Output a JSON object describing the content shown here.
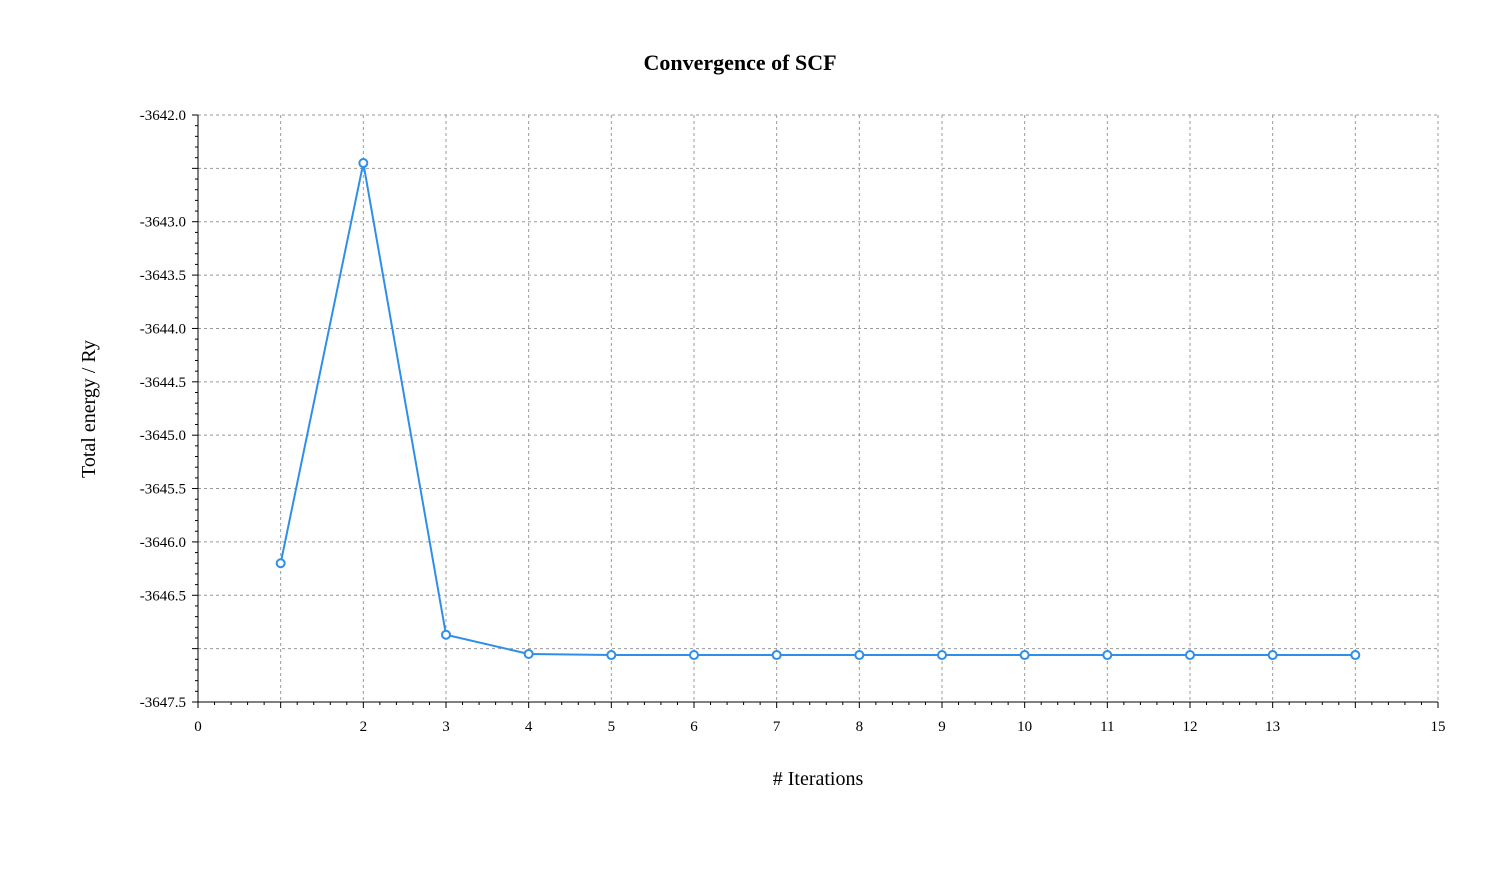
{
  "chart_data": {
    "type": "line",
    "title": "Convergence of SCF",
    "xlabel": "# Iterations",
    "ylabel": "Total energy / Ry",
    "xlim": [
      0,
      15
    ],
    "ylim": [
      -3647.5,
      -3642.0
    ],
    "xticks": [
      "0",
      "2",
      "3",
      "4",
      "5",
      "6",
      "7",
      "8",
      "9",
      "10",
      "11",
      "12",
      "13",
      "15"
    ],
    "xtick_values": [
      0,
      2,
      3,
      4,
      5,
      6,
      7,
      8,
      9,
      10,
      11,
      12,
      13,
      15
    ],
    "xgrid_values": [
      1,
      2,
      3,
      4,
      5,
      6,
      7,
      8,
      9,
      10,
      11,
      12,
      13,
      14,
      15
    ],
    "yticks": [
      "-3642.0",
      "-3643.0",
      "-3643.5",
      "-3644.0",
      "-3644.5",
      "-3645.0",
      "-3645.5",
      "-3646.0",
      "-3646.5",
      "-3647.5"
    ],
    "ytick_values": [
      -3642.0,
      -3643.0,
      -3643.5,
      -3644.0,
      -3644.5,
      -3645.0,
      -3645.5,
      -3646.0,
      -3646.5,
      -3647.5
    ],
    "ygrid_values": [
      -3642.0,
      -3642.5,
      -3643.0,
      -3643.5,
      -3644.0,
      -3644.5,
      -3645.0,
      -3645.5,
      -3646.0,
      -3646.5,
      -3647.0,
      -3647.5
    ],
    "grid": true,
    "series": [
      {
        "color": "#2e8fea",
        "x": [
          1,
          2,
          3,
          4,
          5,
          6,
          7,
          8,
          9,
          10,
          11,
          12,
          13,
          14
        ],
        "values": [
          -3646.2,
          -3642.45,
          -3646.87,
          -3647.05,
          -3647.06,
          -3647.06,
          -3647.06,
          -3647.06,
          -3647.06,
          -3647.06,
          -3647.06,
          -3647.06,
          -3647.06,
          -3647.06
        ]
      }
    ]
  }
}
